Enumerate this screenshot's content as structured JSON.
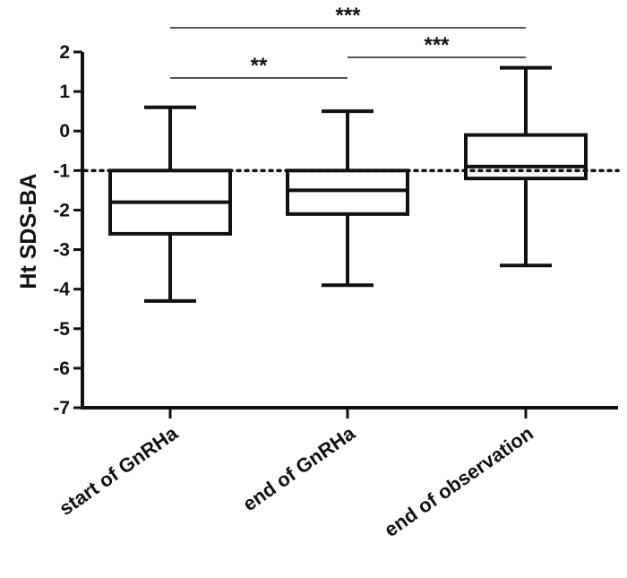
{
  "chart_data": {
    "type": "box",
    "ylabel": "Ht SDS-BA",
    "xlabel": "",
    "ylim": [
      -7,
      2
    ],
    "yticks": [
      2,
      1,
      0,
      -1,
      -2,
      -3,
      -4,
      -5,
      -6,
      -7
    ],
    "ytick_labels": [
      "2",
      "1",
      "0",
      "-1",
      "-2",
      "-3",
      "-4",
      "-5",
      "-6",
      "-7"
    ],
    "categories": [
      "start of GnRHa",
      "end of GnRHa",
      "end of observation"
    ],
    "boxes": [
      {
        "category": "start of GnRHa",
        "min": -4.3,
        "q1": -2.6,
        "median": -1.8,
        "q3": -1.0,
        "max": 0.6
      },
      {
        "category": "end of GnRHa",
        "min": -3.9,
        "q1": -2.1,
        "median": -1.5,
        "q3": -1.0,
        "max": 0.5
      },
      {
        "category": "end of observation",
        "min": -3.4,
        "q1": -1.2,
        "median": -0.9,
        "q3": -0.1,
        "max": 1.6
      }
    ],
    "reference_line": {
      "y": -1,
      "style": "dotted"
    },
    "significance": [
      {
        "from": 0,
        "to": 1,
        "label": "**"
      },
      {
        "from": 1,
        "to": 2,
        "label": "***"
      },
      {
        "from": 0,
        "to": 2,
        "label": "***"
      }
    ],
    "grid": false,
    "colors": {
      "box_stroke": "#111111",
      "bracket": "#555555",
      "text": "#111111"
    }
  }
}
